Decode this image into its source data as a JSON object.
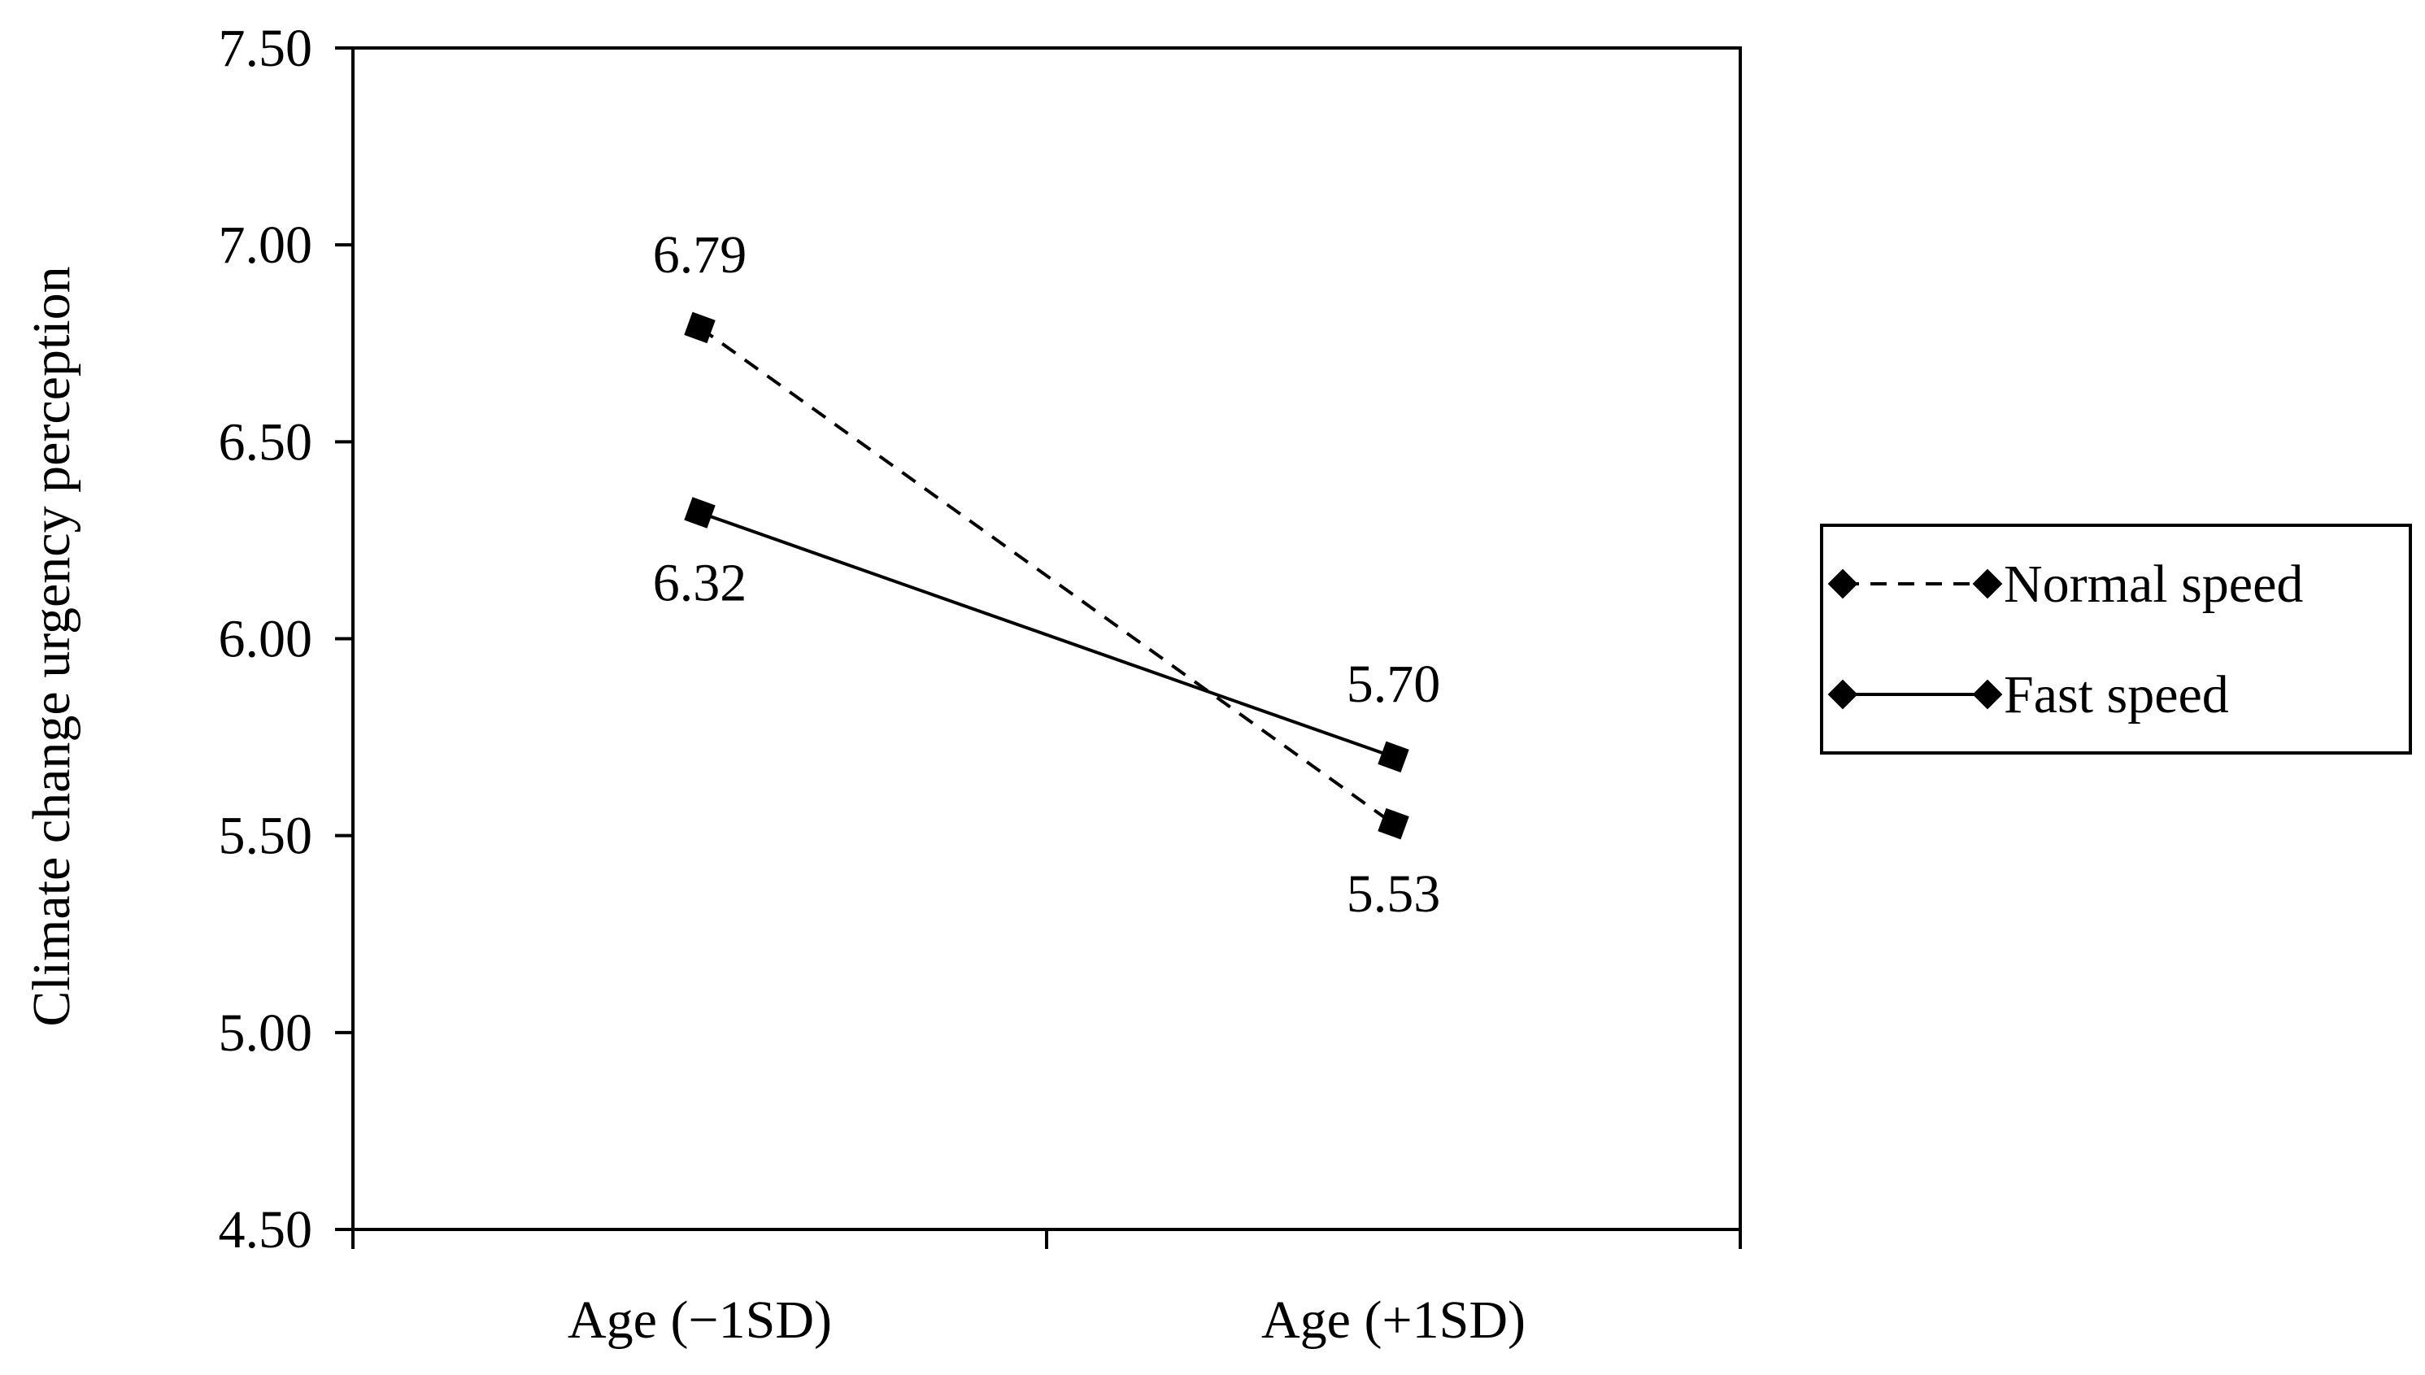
{
  "chart_data": {
    "type": "line",
    "title": "",
    "xlabel": "",
    "ylabel": "Climate change urgency perception",
    "ylim": [
      4.5,
      7.5
    ],
    "yticks": [
      "4.50",
      "5.00",
      "5.50",
      "6.00",
      "6.50",
      "7.00",
      "7.50"
    ],
    "categories": [
      "Age (−1SD)",
      "Age (+1SD)"
    ],
    "series": [
      {
        "name": "Normal speed",
        "style": "dashed",
        "marker": "diamond",
        "values": [
          6.79,
          5.53
        ],
        "labels": [
          "6.79",
          "5.53"
        ],
        "label_positions": [
          "above",
          "below"
        ]
      },
      {
        "name": "Fast speed",
        "style": "solid",
        "marker": "diamond",
        "values": [
          6.32,
          5.7
        ],
        "labels": [
          "6.32",
          "5.70"
        ],
        "label_positions": [
          "below",
          "above"
        ]
      }
    ],
    "grid": false,
    "legend": "right",
    "colors": {
      "line": "#000000",
      "background": "#ffffff"
    }
  }
}
